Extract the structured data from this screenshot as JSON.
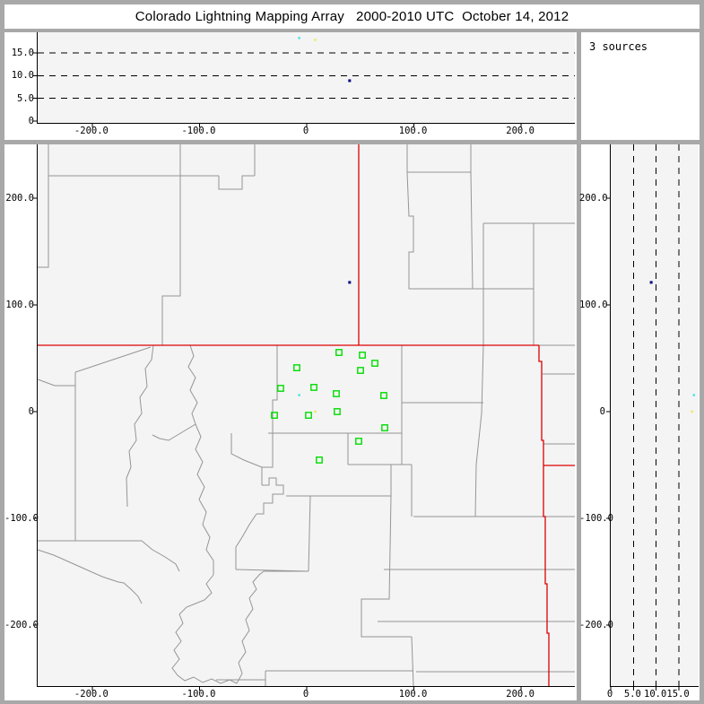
{
  "window": {
    "title": "Colorado Lightning Mapping Array   2000-2010 UTC  October 14, 2012"
  },
  "status": {
    "sources_label": "3 sources"
  },
  "colors": {
    "frame": "#a8a8a8",
    "panel_bg": "#ffffff",
    "plot_bg": "#f4f4f4",
    "axis": "#000000",
    "county_line": "#959595",
    "state_border": "#dd0000",
    "station": "#00dd00",
    "source_cyan": "#46e2e2",
    "source_yellow": "#e9e95a",
    "source_navy": "#000080"
  },
  "chart_data": [
    {
      "type": "scatter",
      "name": "altitude-vs-east-west",
      "title": "",
      "xlabel": "",
      "ylabel": "",
      "xlim": [
        -250,
        250
      ],
      "ylim": [
        0,
        20
      ],
      "grid": "dashed-horizontal",
      "legend": "none",
      "xticks": [
        {
          "v": -200,
          "label": "-200.0"
        },
        {
          "v": -100,
          "label": "-100.0"
        },
        {
          "v": 0,
          "label": "0"
        },
        {
          "v": 100,
          "label": "100.0"
        },
        {
          "v": 200,
          "label": "200.0"
        }
      ],
      "yticks": [
        {
          "v": 0,
          "label": "0"
        },
        {
          "v": 5,
          "label": "5.0"
        },
        {
          "v": 10,
          "label": "10.0"
        },
        {
          "v": 15,
          "label": "15.0"
        }
      ],
      "points": [
        {
          "x": -7,
          "y": 18.3,
          "color": "#46e2e2",
          "size": 2.4
        },
        {
          "x": 8,
          "y": 17.9,
          "color": "#e9e95a",
          "size": 2.4
        },
        {
          "x": 40,
          "y": 8.9,
          "color": "#000080",
          "size": 3
        }
      ]
    },
    {
      "type": "scatter",
      "name": "plan-view-map",
      "title": "",
      "xlabel": "",
      "ylabel": "",
      "xlim": [
        -250,
        250
      ],
      "ylim": [
        -255,
        250
      ],
      "grid": "off",
      "legend": "none",
      "xticks": [
        {
          "v": -200,
          "label": "-200.0"
        },
        {
          "v": -100,
          "label": "-100.0"
        },
        {
          "v": 0,
          "label": "0"
        },
        {
          "v": 100,
          "label": "100.0"
        },
        {
          "v": 200,
          "label": "200.0"
        }
      ],
      "yticks": [
        {
          "v": 200,
          "label": "200.0"
        },
        {
          "v": 100,
          "label": "100.0"
        },
        {
          "v": 0,
          "label": "0"
        },
        {
          "v": -100,
          "label": "-100.0"
        },
        {
          "v": -200,
          "label": "-200.0"
        }
      ],
      "stations": [
        {
          "x": 30.1,
          "y": 55.4
        },
        {
          "x": 51.9,
          "y": 52.9
        },
        {
          "x": 63.6,
          "y": 45.3
        },
        {
          "x": 50.2,
          "y": 38.6
        },
        {
          "x": -9.2,
          "y": 41.1
        },
        {
          "x": 6.7,
          "y": 22.7
        },
        {
          "x": -24.3,
          "y": 21.8
        },
        {
          "x": 27.6,
          "y": 16.8
        },
        {
          "x": 71.9,
          "y": 15.1
        },
        {
          "x": -30.1,
          "y": -3.4
        },
        {
          "x": 1.7,
          "y": -3.4
        },
        {
          "x": 28.4,
          "y": 0.0
        },
        {
          "x": 72.8,
          "y": -15.1
        },
        {
          "x": 48.5,
          "y": -27.7
        },
        {
          "x": 11.7,
          "y": -45.3
        }
      ],
      "sources": [
        {
          "x": -7,
          "y": 15.5,
          "color": "#46e2e2",
          "size": 2.4
        },
        {
          "x": 8,
          "y": 0,
          "color": "#e9e95a",
          "size": 2.4
        },
        {
          "x": 40,
          "y": 121,
          "color": "#000080",
          "size": 3
        }
      ]
    },
    {
      "type": "scatter",
      "name": "north-south-vs-altitude",
      "title": "",
      "xlabel": "",
      "ylabel": "",
      "xlim": [
        0,
        19.3
      ],
      "ylim": [
        -255,
        250
      ],
      "grid": "dashed-vertical",
      "legend": "none",
      "xticks": [
        {
          "v": 0,
          "label": "0"
        },
        {
          "v": 5,
          "label": "5.0"
        },
        {
          "v": 10,
          "label": "10.0"
        },
        {
          "v": 15,
          "label": "15.0"
        }
      ],
      "yticks": [
        {
          "v": 200,
          "label": "200.0"
        },
        {
          "v": 100,
          "label": "100.0"
        },
        {
          "v": 0,
          "label": "0"
        },
        {
          "v": -100,
          "label": "-100.0"
        },
        {
          "v": -200,
          "label": "-200.0"
        }
      ],
      "points": [
        {
          "x": 18.3,
          "y": 15.5,
          "color": "#46e2e2",
          "size": 2.4
        },
        {
          "x": 17.9,
          "y": 0,
          "color": "#e9e95a",
          "size": 2.4
        },
        {
          "x": 8.9,
          "y": 121,
          "color": "#000080",
          "size": 3
        }
      ]
    }
  ],
  "map_geometry": {
    "state_border_paths": [
      "M0 224 H559",
      "M358 0 V224",
      "M559 224 V242 H562 V330 H564 V415 H566 V490 H568 V545 H570 V604",
      "M564 358 H599"
    ],
    "county_paths": [
      "M12 0 V137 H0",
      "M12 35 H202",
      "M159 0 V169 H139 V224",
      "M202 35 V50 H228 V35 H242",
      "M242 35 V0",
      "M412 0 V31 H483 V0",
      "M412 31 L414 80 H419 V120 H414 V161 H497",
      "M483 31 L485 161",
      "M497 88 V161",
      "M497 88 H599",
      "M553 88 V224",
      "M497 161 H553",
      "M497 161 V224",
      "M559 224 H599",
      "M563 256 H599",
      "M564 334 H599",
      "M386 474 H599",
      "M379 532 H599",
      "M422 588 H599",
      "M406 224 V357",
      "M346 357 H417",
      "M346 322 V357",
      "M497 224 L495 300 L489 357 L488 415",
      "M419 415 H599",
      "M406 288 H497",
      "M267 224 V285 H262 V322",
      "M257 322 H406",
      "M417 357 V415",
      "M277 392 H394 V357",
      "M394 392 L392 507 H361 V549 H417",
      "M417 549 L419 604",
      "M254 587 H419",
      "M254 587 V604",
      "M199 597 H254",
      "M304 392 L302 476",
      "M221 474 L302 476",
      "M244 412 L236 424 L228 438 L221 449 V474",
      "M250 380 H258 V372 H266 V380 H274 V390 H262 V400 H252 V412 H244",
      "M262 322 V360 H250 V380",
      "M216 322 V345 L230 352 L240 356 L250 360",
      "M129 224 L127 240 L120 250 L122 270 L114 282 L116 300 L108 312 L110 330 L102 342 L104 360 L99 372 L100 404",
      "M170 224 L174 236 L168 248 L176 260 L170 274 L178 288 L172 300 L176 312 L166 318 L156 324 L146 330 L136 328 L128 324",
      "M176 312 L182 326 L176 340 L184 354 L178 368 L186 382 L180 396 L188 410 L184 424 L192 438 L188 452 L196 464 L196 480",
      "M196 480 L188 490 L194 500 L186 508 L176 512 L166 516 L158 524 L162 534 L154 544 L160 554 L152 564 L158 574 L150 584 L156 592 L164 598 L174 594 L184 600 L194 596 L204 601 L214 597 L222 601",
      "M222 601 L228 590 L224 578 L232 566 L228 554 L236 542 L232 530 L240 518 L236 506 L244 496 L240 488 L247 480 L252 476 L302 476",
      "M0 442 H116",
      "M116 442 L128 452 L142 460 L154 468 L158 476",
      "M0 452 L18 458 L36 466 L54 474 L72 482 L90 488 L96 489 L104 496 L112 504 L116 512",
      "M42 254 V442",
      "M19 269 H42",
      "M0 262 L19 269",
      "M42 254 L60 248 L78 242 L96 236 L114 230 L126 226"
    ]
  }
}
